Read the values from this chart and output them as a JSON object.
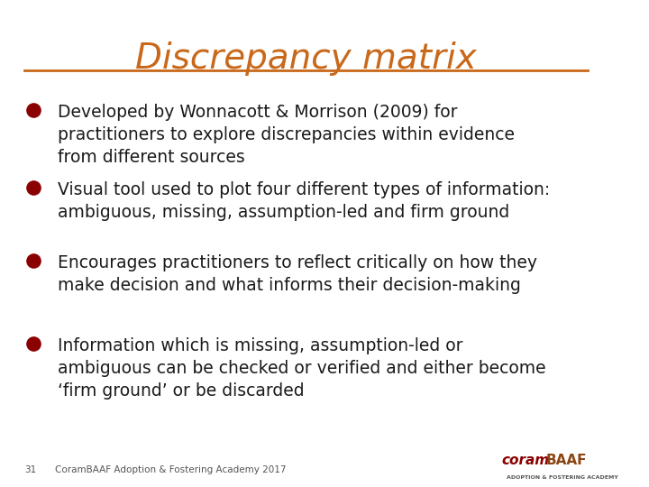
{
  "title": "Discrepancy matrix",
  "title_color": "#C8681A",
  "title_fontsize": 28,
  "title_fontstyle": "italic",
  "underline_color": "#C8681A",
  "bullet_color": "#8B0000",
  "bullet_size": 120,
  "text_color": "#1a1a1a",
  "text_fontsize": 13.5,
  "background_color": "#ffffff",
  "bullets": [
    "Developed by Wonnacott & Morrison (2009) for\npractitioners to explore discrepancies within evidence\nfrom different sources",
    "Visual tool used to plot four different types of information:\nambiguous, missing, assumption-led and firm ground",
    "Encourages practitioners to reflect critically on how they\nmake decision and what informs their decision-making",
    "Information which is missing, assumption-led or\nambiguous can be checked or verified and either become\n‘firm ground’ or be discarded"
  ],
  "footer_number": "31",
  "footer_text": "CoramBAAF Adoption & Fostering Academy 2017",
  "footer_fontsize": 7.5,
  "footer_color": "#555555",
  "logo_coram_color": "#8B0000",
  "logo_baaf_color": "#8B4513",
  "logo_sub_color": "#555555"
}
